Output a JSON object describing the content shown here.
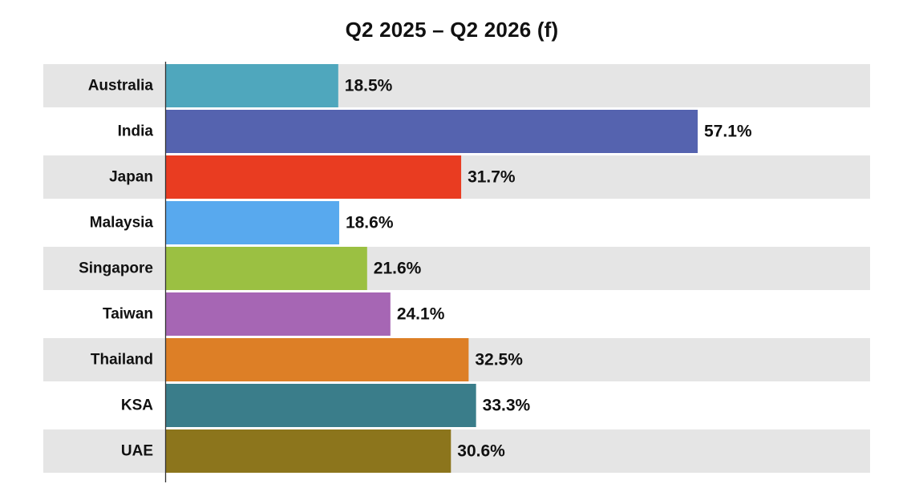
{
  "chart_data": {
    "type": "bar",
    "orientation": "horizontal",
    "title": "Q2 2025 – Q2 2026 (f)",
    "categories": [
      "Australia",
      "India",
      "Japan",
      "Malaysia",
      "Singapore",
      "Taiwan",
      "Thailand",
      "KSA",
      "UAE"
    ],
    "values": [
      18.5,
      57.1,
      31.7,
      18.6,
      21.6,
      24.1,
      32.5,
      33.3,
      30.6
    ],
    "value_labels": [
      "18.5%",
      "57.1%",
      "31.7%",
      "18.6%",
      "21.6%",
      "24.1%",
      "32.5%",
      "33.3%",
      "30.6%"
    ],
    "colors": [
      "#4fa7bd",
      "#5563af",
      "#e93c21",
      "#58a9ee",
      "#9bc042",
      "#a666b4",
      "#dd7f26",
      "#3a7d8a",
      "#8c751c"
    ],
    "band_color": "#e5e5e5",
    "unit": "%",
    "xlim": [
      0,
      75.5
    ],
    "xlabel": "",
    "ylabel": "",
    "grid": false,
    "legend": "none"
  }
}
